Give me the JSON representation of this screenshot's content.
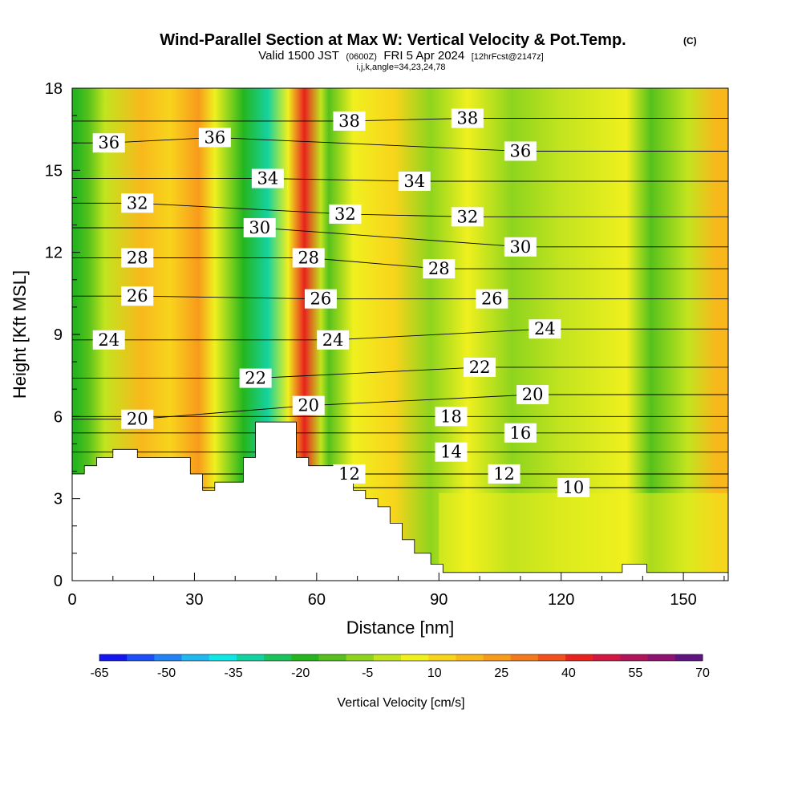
{
  "title": {
    "main": "Wind-Parallel Section at Max W: Vertical Velocity & Pot.Temp.",
    "copyright": "(C)",
    "valid_prefix": "Valid 1500 JST",
    "valid_utc": "(0600Z)",
    "valid_date": "FRI 5 Apr 2024",
    "forecast": "[12hrFcst@2147z]",
    "indices": "i,j,k,angle=34,23,24,78"
  },
  "chart_data": {
    "type": "heatmap",
    "xlabel": "Distance [nm]",
    "ylabel": "Height [Kft MSL]",
    "xlim": [
      0,
      161
    ],
    "ylim": [
      0,
      18
    ],
    "x_ticks": [
      0,
      30,
      60,
      90,
      120,
      150
    ],
    "y_ticks": [
      0,
      3,
      6,
      9,
      12,
      15,
      18
    ],
    "field": "Vertical Velocity [cm/s]",
    "contour_field": "Potential Temperature",
    "colorbar": {
      "label": "Vertical Velocity [cm/s]",
      "ticks": [
        -65,
        -50,
        -35,
        -20,
        -5,
        10,
        25,
        40,
        55,
        70
      ],
      "colors": [
        "#1515f0",
        "#1c4ff5",
        "#2383f5",
        "#21b8f0",
        "#0fe6e6",
        "#14d2a0",
        "#1cc35a",
        "#25b61e",
        "#56c11c",
        "#8ed41e",
        "#c2e41e",
        "#f0f01e",
        "#f8d41c",
        "#f8b81c",
        "#f89a1c",
        "#f27a1c",
        "#f0501c",
        "#e8221e",
        "#d01842",
        "#b0155c",
        "#8e1270",
        "#601480"
      ]
    },
    "bands": [
      {
        "x": 1,
        "w": -20
      },
      {
        "x": 4,
        "w": -10
      },
      {
        "x": 8,
        "w": 0
      },
      {
        "x": 17,
        "w": 15
      },
      {
        "x": 24,
        "w": 10
      },
      {
        "x": 31,
        "w": 25
      },
      {
        "x": 35,
        "w": 5
      },
      {
        "x": 42,
        "w": -20
      },
      {
        "x": 48,
        "w": -30
      },
      {
        "x": 53,
        "w": 5
      },
      {
        "x": 57,
        "w": 40
      },
      {
        "x": 61,
        "w": 0
      },
      {
        "x": 63,
        "w": -15
      },
      {
        "x": 69,
        "w": 5
      },
      {
        "x": 79,
        "w": 10
      },
      {
        "x": 88,
        "w": -5
      },
      {
        "x": 97,
        "w": 5
      },
      {
        "x": 108,
        "w": -5
      },
      {
        "x": 120,
        "w": 0
      },
      {
        "x": 136,
        "w": 5
      },
      {
        "x": 142,
        "w": -15
      },
      {
        "x": 151,
        "w": 0
      },
      {
        "x": 158,
        "w": 15
      }
    ],
    "terrain": [
      [
        0,
        3.9
      ],
      [
        3,
        3.9
      ],
      [
        3,
        4.2
      ],
      [
        6,
        4.2
      ],
      [
        6,
        4.5
      ],
      [
        10,
        4.5
      ],
      [
        10,
        4.8
      ],
      [
        16,
        4.8
      ],
      [
        16,
        4.5
      ],
      [
        29,
        4.5
      ],
      [
        29,
        3.9
      ],
      [
        32,
        3.9
      ],
      [
        32,
        3.3
      ],
      [
        35,
        3.3
      ],
      [
        35,
        3.6
      ],
      [
        42,
        3.6
      ],
      [
        42,
        4.5
      ],
      [
        45,
        4.5
      ],
      [
        45,
        5.8
      ],
      [
        55,
        5.8
      ],
      [
        55,
        4.5
      ],
      [
        58,
        4.5
      ],
      [
        58,
        4.2
      ],
      [
        65,
        4.2
      ],
      [
        65,
        3.6
      ],
      [
        69,
        3.6
      ],
      [
        69,
        3.3
      ],
      [
        72,
        3.3
      ],
      [
        72,
        3.0
      ],
      [
        75,
        3.0
      ],
      [
        75,
        2.7
      ],
      [
        78,
        2.7
      ],
      [
        78,
        2.1
      ],
      [
        81,
        2.1
      ],
      [
        81,
        1.5
      ],
      [
        84,
        1.5
      ],
      [
        84,
        1.0
      ],
      [
        88,
        1.0
      ],
      [
        88,
        0.6
      ],
      [
        91,
        0.6
      ],
      [
        91,
        0.3
      ],
      [
        135,
        0.3
      ],
      [
        135,
        0.6
      ],
      [
        141,
        0.6
      ],
      [
        141,
        0.3
      ],
      [
        161,
        0.3
      ]
    ],
    "theta_labels": [
      {
        "text": "36",
        "x": 9,
        "y": 16.0
      },
      {
        "text": "36",
        "x": 35,
        "y": 16.2
      },
      {
        "text": "38",
        "x": 68,
        "y": 16.8
      },
      {
        "text": "38",
        "x": 97,
        "y": 16.9
      },
      {
        "text": "36",
        "x": 110,
        "y": 15.7
      },
      {
        "text": "34",
        "x": 48,
        "y": 14.7
      },
      {
        "text": "34",
        "x": 84,
        "y": 14.6
      },
      {
        "text": "32",
        "x": 16,
        "y": 13.8
      },
      {
        "text": "32",
        "x": 67,
        "y": 13.4
      },
      {
        "text": "32",
        "x": 97,
        "y": 13.3
      },
      {
        "text": "30",
        "x": 46,
        "y": 12.9
      },
      {
        "text": "30",
        "x": 110,
        "y": 12.2
      },
      {
        "text": "28",
        "x": 16,
        "y": 11.8
      },
      {
        "text": "28",
        "x": 58,
        "y": 11.8
      },
      {
        "text": "28",
        "x": 90,
        "y": 11.4
      },
      {
        "text": "26",
        "x": 16,
        "y": 10.4
      },
      {
        "text": "26",
        "x": 61,
        "y": 10.3
      },
      {
        "text": "26",
        "x": 103,
        "y": 10.3
      },
      {
        "text": "24",
        "x": 9,
        "y": 8.8
      },
      {
        "text": "24",
        "x": 64,
        "y": 8.8
      },
      {
        "text": "24",
        "x": 116,
        "y": 9.2
      },
      {
        "text": "22",
        "x": 45,
        "y": 7.4
      },
      {
        "text": "22",
        "x": 100,
        "y": 7.8
      },
      {
        "text": "20",
        "x": 16,
        "y": 5.9
      },
      {
        "text": "20",
        "x": 58,
        "y": 6.4
      },
      {
        "text": "20",
        "x": 113,
        "y": 6.8
      },
      {
        "text": "18",
        "x": 93,
        "y": 6.0
      },
      {
        "text": "16",
        "x": 110,
        "y": 5.4
      },
      {
        "text": "14",
        "x": 93,
        "y": 4.7
      },
      {
        "text": "12",
        "x": 68,
        "y": 3.9
      },
      {
        "text": "12",
        "x": 106,
        "y": 3.9
      },
      {
        "text": "10",
        "x": 123,
        "y": 3.4
      }
    ]
  }
}
